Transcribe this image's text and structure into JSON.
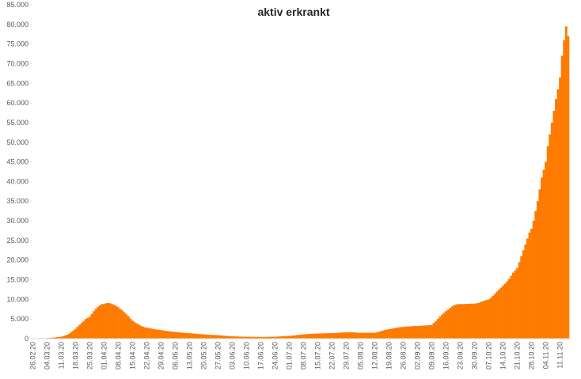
{
  "chart_data": {
    "type": "bar",
    "title": "aktiv erkrankt",
    "color": "#ff7b00",
    "ylim": [
      0,
      85000
    ],
    "yticks": [
      0,
      {
        "value": 5000,
        "label": "5.000"
      },
      {
        "value": 10000,
        "label": "10.000"
      },
      {
        "value": 15000,
        "label": "15.000"
      },
      {
        "value": 20000,
        "label": "20.000"
      },
      {
        "value": 25000,
        "label": "25.000"
      },
      {
        "value": 30000,
        "label": "30.000"
      },
      {
        "value": 35000,
        "label": "35.000"
      },
      {
        "value": 40000,
        "label": "40.000"
      },
      {
        "value": 45000,
        "label": "45.000"
      },
      {
        "value": 50000,
        "label": "50.000"
      },
      {
        "value": 55000,
        "label": "55.000"
      },
      {
        "value": 60000,
        "label": "60.000"
      },
      {
        "value": 65000,
        "label": "65.000"
      },
      {
        "value": 70000,
        "label": "70.000"
      },
      {
        "value": 75000,
        "label": "75.000"
      },
      {
        "value": 80000,
        "label": "80.000"
      },
      {
        "value": 85000,
        "label": "85.000"
      }
    ],
    "categories": [
      "26.02.20",
      null,
      null,
      null,
      null,
      null,
      null,
      "04.03.20",
      null,
      null,
      null,
      null,
      null,
      null,
      "11.03.20",
      null,
      null,
      null,
      null,
      null,
      null,
      "18.03.20",
      null,
      null,
      null,
      null,
      null,
      null,
      "25.03.20",
      null,
      null,
      null,
      null,
      null,
      null,
      "01.04.20",
      null,
      null,
      null,
      null,
      null,
      null,
      "08.04.20",
      null,
      null,
      null,
      null,
      null,
      null,
      "15.04.20",
      null,
      null,
      null,
      null,
      null,
      null,
      "22.04.20",
      null,
      null,
      null,
      null,
      null,
      null,
      "29.04.20",
      null,
      null,
      null,
      null,
      null,
      null,
      "06.05.20",
      null,
      null,
      null,
      null,
      null,
      null,
      "13.05.20",
      null,
      null,
      null,
      null,
      null,
      null,
      "20.05.20",
      null,
      null,
      null,
      null,
      null,
      null,
      "27.05.20",
      null,
      null,
      null,
      null,
      null,
      null,
      "03.06.20",
      null,
      null,
      null,
      null,
      null,
      null,
      "10.06.20",
      null,
      null,
      null,
      null,
      null,
      null,
      "17.06.20",
      null,
      null,
      null,
      null,
      null,
      null,
      "24.06.20",
      null,
      null,
      null,
      null,
      null,
      null,
      "01.07.20",
      null,
      null,
      null,
      null,
      null,
      null,
      "08.07.20",
      null,
      null,
      null,
      null,
      null,
      null,
      "15.07.20",
      null,
      null,
      null,
      null,
      null,
      null,
      "22.07.20",
      null,
      null,
      null,
      null,
      null,
      null,
      "29.07.20",
      null,
      null,
      null,
      null,
      null,
      null,
      "05.08.20",
      null,
      null,
      null,
      null,
      null,
      null,
      "12.08.20",
      null,
      null,
      null,
      null,
      null,
      null,
      "19.08.20",
      null,
      null,
      null,
      null,
      null,
      null,
      "26.08.20",
      null,
      null,
      null,
      null,
      null,
      null,
      "02.09.20",
      null,
      null,
      null,
      null,
      null,
      null,
      "09.09.20",
      null,
      null,
      null,
      null,
      null,
      null,
      "16.09.20",
      null,
      null,
      null,
      null,
      null,
      null,
      "23.09.20",
      null,
      null,
      null,
      null,
      null,
      null,
      "30.09.20",
      null,
      null,
      null,
      null,
      null,
      null,
      "07.10.20",
      null,
      null,
      null,
      null,
      null,
      null,
      "14.10.20",
      null,
      null,
      null,
      null,
      null,
      null,
      "21.10.20",
      null,
      null,
      null,
      null,
      null,
      null,
      "28.10.20",
      null,
      null,
      null,
      null,
      null,
      null,
      "04.11.20",
      null,
      null,
      null,
      null,
      null,
      null,
      "11.11.20",
      null,
      null,
      null,
      null
    ],
    "values": [
      10,
      20,
      30,
      50,
      70,
      100,
      120,
      150,
      180,
      220,
      270,
      330,
      400,
      450,
      500,
      650,
      800,
      1000,
      1300,
      1700,
      2100,
      2500,
      3000,
      3500,
      4000,
      4500,
      5000,
      5300,
      5600,
      6300,
      7000,
      7600,
      8100,
      8500,
      8800,
      8800,
      9000,
      9100,
      9000,
      8800,
      8600,
      8300,
      8000,
      7600,
      7200,
      6700,
      6200,
      5700,
      5100,
      4600,
      4200,
      3900,
      3600,
      3300,
      3100,
      2900,
      2800,
      2700,
      2600,
      2500,
      2400,
      2300,
      2250,
      2200,
      2100,
      2000,
      1950,
      1900,
      1800,
      1750,
      1700,
      1650,
      1600,
      1550,
      1500,
      1450,
      1420,
      1400,
      1350,
      1300,
      1250,
      1200,
      1150,
      1120,
      1100,
      1050,
      1000,
      980,
      950,
      930,
      910,
      900,
      850,
      800,
      750,
      700,
      650,
      620,
      600,
      580,
      560,
      540,
      520,
      510,
      500,
      500,
      490,
      480,
      470,
      460,
      455,
      450,
      450,
      450,
      460,
      470,
      480,
      490,
      495,
      500,
      520,
      550,
      580,
      610,
      650,
      680,
      700,
      750,
      800,
      850,
      920,
      980,
      1050,
      1100,
      1130,
      1160,
      1200,
      1230,
      1260,
      1280,
      1300,
      1320,
      1340,
      1350,
      1360,
      1380,
      1390,
      1400,
      1430,
      1460,
      1500,
      1530,
      1560,
      1580,
      1600,
      1620,
      1640,
      1620,
      1580,
      1550,
      1520,
      1500,
      1500,
      1500,
      1500,
      1500,
      1500,
      1500,
      1500,
      1600,
      1750,
      1900,
      2050,
      2200,
      2300,
      2400,
      2500,
      2600,
      2700,
      2800,
      2900,
      2950,
      3000,
      3050,
      3100,
      3100,
      3150,
      3200,
      3200,
      3200,
      3250,
      3300,
      3300,
      3350,
      3400,
      3450,
      3500,
      4000,
      4500,
      5000,
      5600,
      6100,
      6600,
      7000,
      7400,
      7800,
      8200,
      8500,
      8700,
      8800,
      8800,
      8800,
      8800,
      8850,
      8850,
      8900,
      8900,
      8900,
      9000,
      9100,
      9300,
      9500,
      9700,
      9850,
      10000,
      10400,
      10900,
      11400,
      12000,
      12500,
      13000,
      13500,
      14000,
      14600,
      15200,
      16000,
      16800,
      17400,
      18000,
      19500,
      21000,
      22500,
      24000,
      25500,
      27000,
      28000,
      30000,
      32500,
      35000,
      38000,
      41000,
      43000,
      45000,
      49000,
      52000,
      55000,
      58000,
      61000,
      63500,
      66500,
      72000,
      76000,
      79500,
      77000
    ]
  }
}
